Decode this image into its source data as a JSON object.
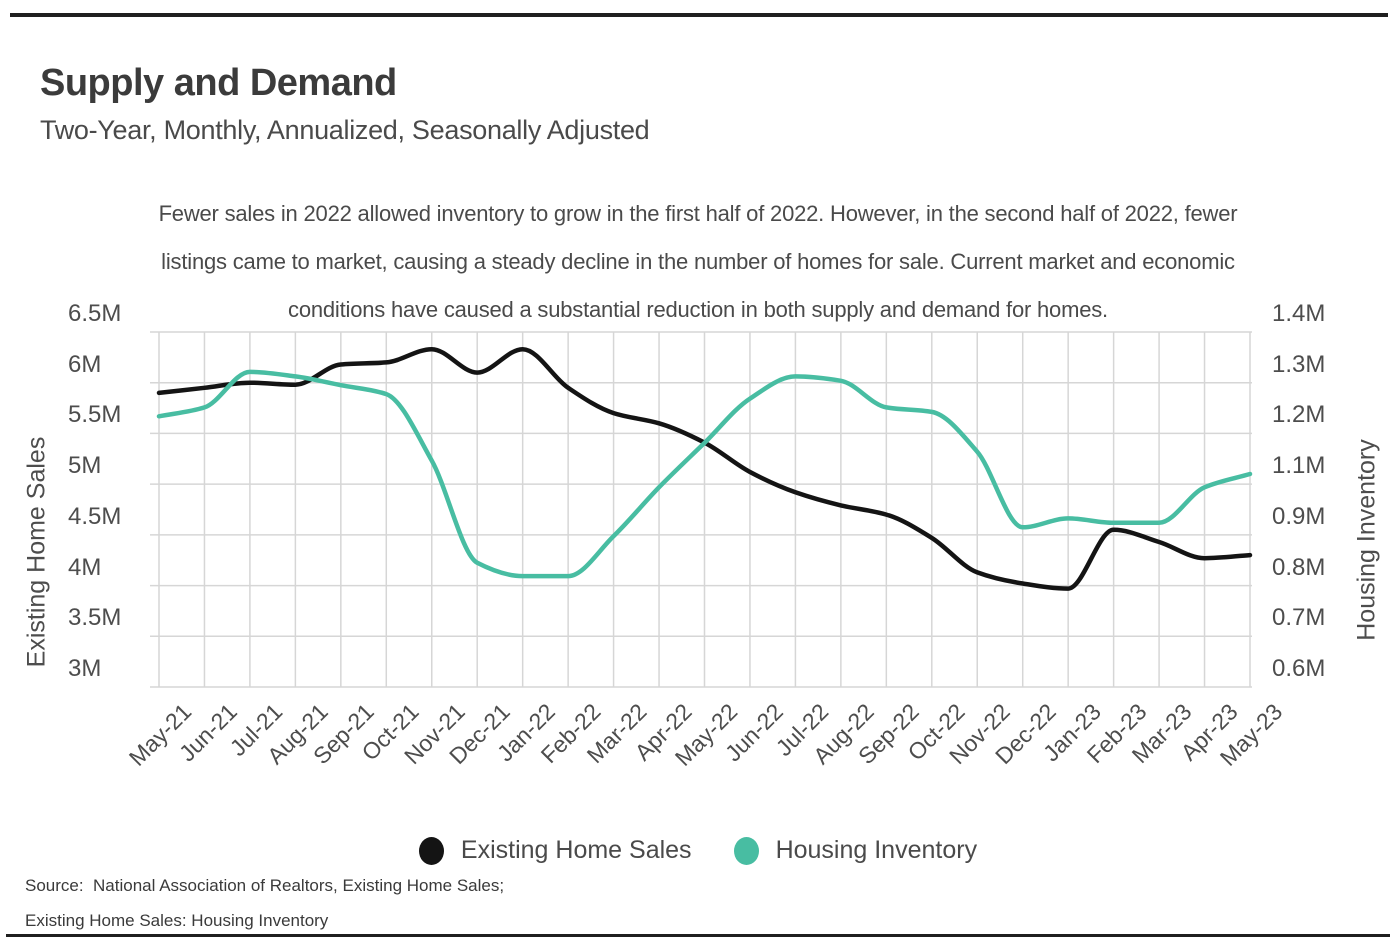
{
  "header": {
    "title": "Supply and Demand",
    "subtitle": "Two-Year, Monthly, Annualized, Seasonally Adjusted"
  },
  "description": {
    "lines": [
      "Fewer sales in 2022 allowed inventory to grow in the first half of 2022. However, in the second half of 2022, fewer",
      "listings came to market, causing a steady decline in the number of homes for sale. Current market and economic",
      "conditions have caused a substantial reduction in both supply and demand for homes."
    ]
  },
  "chart_data": {
    "type": "line",
    "x": [
      "May-21",
      "Jun-21",
      "Jul-21",
      "Aug-21",
      "Sep-21",
      "Oct-21",
      "Nov-21",
      "Dec-21",
      "Jan-22",
      "Feb-22",
      "Mar-22",
      "Apr-22",
      "May-22",
      "Jun-22",
      "Jul-22",
      "Aug-22",
      "Sep-22",
      "Oct-22",
      "Nov-22",
      "Dec-22",
      "Jan-23",
      "Feb-23",
      "Mar-23",
      "Apr-23",
      "May-23"
    ],
    "series": [
      {
        "name": "Existing Home Sales",
        "axis": "left",
        "color": "#141414",
        "unit": "M",
        "values": [
          5.9,
          5.95,
          6.0,
          5.98,
          6.18,
          6.2,
          6.33,
          6.1,
          6.33,
          5.95,
          5.7,
          5.6,
          5.41,
          5.12,
          4.92,
          4.79,
          4.7,
          4.47,
          4.13,
          4.02,
          3.97,
          4.55,
          4.43,
          4.27,
          4.3
        ]
      },
      {
        "name": "Housing Inventory",
        "axis": "right",
        "color": "#48bda2",
        "unit": "M",
        "values": [
          1.21,
          1.23,
          1.31,
          1.3,
          1.28,
          1.26,
          1.11,
          0.88,
          0.85,
          0.85,
          0.94,
          1.05,
          1.15,
          1.25,
          1.3,
          1.29,
          1.23,
          1.22,
          1.13,
          0.96,
          0.98,
          0.97,
          0.97,
          1.05,
          1.08
        ]
      }
    ],
    "left_axis": {
      "title": "Existing Home Sales",
      "tick_labels": [
        "6.5M",
        "6M",
        "5.5M",
        "5M",
        "4.5M",
        "4M",
        "3.5M",
        "3M"
      ],
      "range": [
        3.0,
        6.5
      ]
    },
    "right_axis": {
      "title": "Housing Inventory",
      "tick_labels": [
        "1.4M",
        "1.3M",
        "1.2M",
        "1.1M",
        "0.9M",
        "0.8M",
        "0.7M",
        "0.6M"
      ],
      "range": [
        0.6,
        1.4
      ]
    },
    "grid": true,
    "grid_color": "#d6d6d6",
    "legend_position": "bottom"
  },
  "legend": {
    "items": [
      {
        "label": "Existing Home Sales",
        "color": "#141414"
      },
      {
        "label": "Housing Inventory",
        "color": "#48bda2"
      }
    ]
  },
  "source": {
    "line1": "Source:  National Association of Realtors, Existing Home Sales;",
    "line2": "Existing Home Sales: Housing Inventory"
  }
}
